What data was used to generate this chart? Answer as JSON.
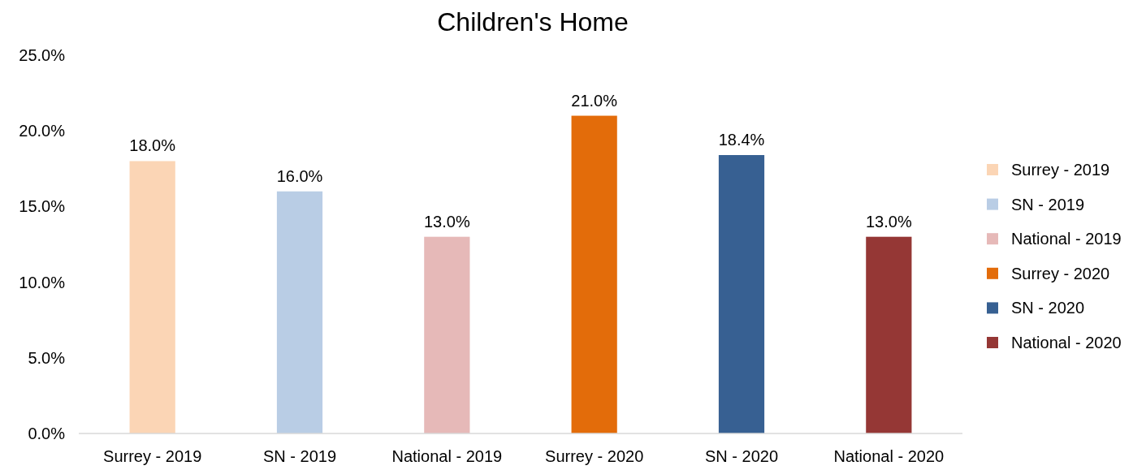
{
  "chart_data": {
    "type": "bar",
    "title": "Children's Home",
    "stacked": true,
    "categories": [
      "Surrey - 2019",
      "SN - 2019",
      "National - 2019",
      "Surrey - 2020",
      "SN - 2020",
      "National - 2020"
    ],
    "series": [
      {
        "name": "Surrey - 2019",
        "color": "#fbd5b5",
        "values": [
          18.0,
          null,
          null,
          null,
          null,
          null
        ],
        "value_labels": [
          "18.0%",
          null,
          null,
          null,
          null,
          null
        ]
      },
      {
        "name": "SN - 2019",
        "color": "#b9cde5",
        "values": [
          null,
          16.0,
          null,
          null,
          null,
          null
        ],
        "value_labels": [
          null,
          "16.0%",
          null,
          null,
          null,
          null
        ]
      },
      {
        "name": "National - 2019",
        "color": "#e6b9b8",
        "values": [
          null,
          null,
          13.0,
          null,
          null,
          null
        ],
        "value_labels": [
          null,
          null,
          "13.0%",
          null,
          null,
          null
        ]
      },
      {
        "name": "Surrey - 2020",
        "color": "#e36c0a",
        "values": [
          null,
          null,
          null,
          21.0,
          null,
          null
        ],
        "value_labels": [
          null,
          null,
          null,
          "21.0%",
          null,
          null
        ]
      },
      {
        "name": "SN - 2020",
        "color": "#376092",
        "values": [
          null,
          null,
          null,
          null,
          18.4,
          null
        ],
        "value_labels": [
          null,
          null,
          null,
          null,
          "18.4%",
          null
        ]
      },
      {
        "name": "National - 2020",
        "color": "#953735",
        "values": [
          null,
          null,
          null,
          null,
          null,
          13.0
        ],
        "value_labels": [
          null,
          null,
          null,
          null,
          null,
          "13.0%"
        ]
      }
    ],
    "ylim": [
      0,
      25
    ],
    "yticks": [
      {
        "value": 0,
        "label": "0.0%"
      },
      {
        "value": 5,
        "label": "5.0%"
      },
      {
        "value": 10,
        "label": "10.0%"
      },
      {
        "value": 15,
        "label": "15.0%"
      },
      {
        "value": 20,
        "label": "20.0%"
      },
      {
        "value": 25,
        "label": "25.0%"
      }
    ],
    "grid": false,
    "legend": "right"
  }
}
